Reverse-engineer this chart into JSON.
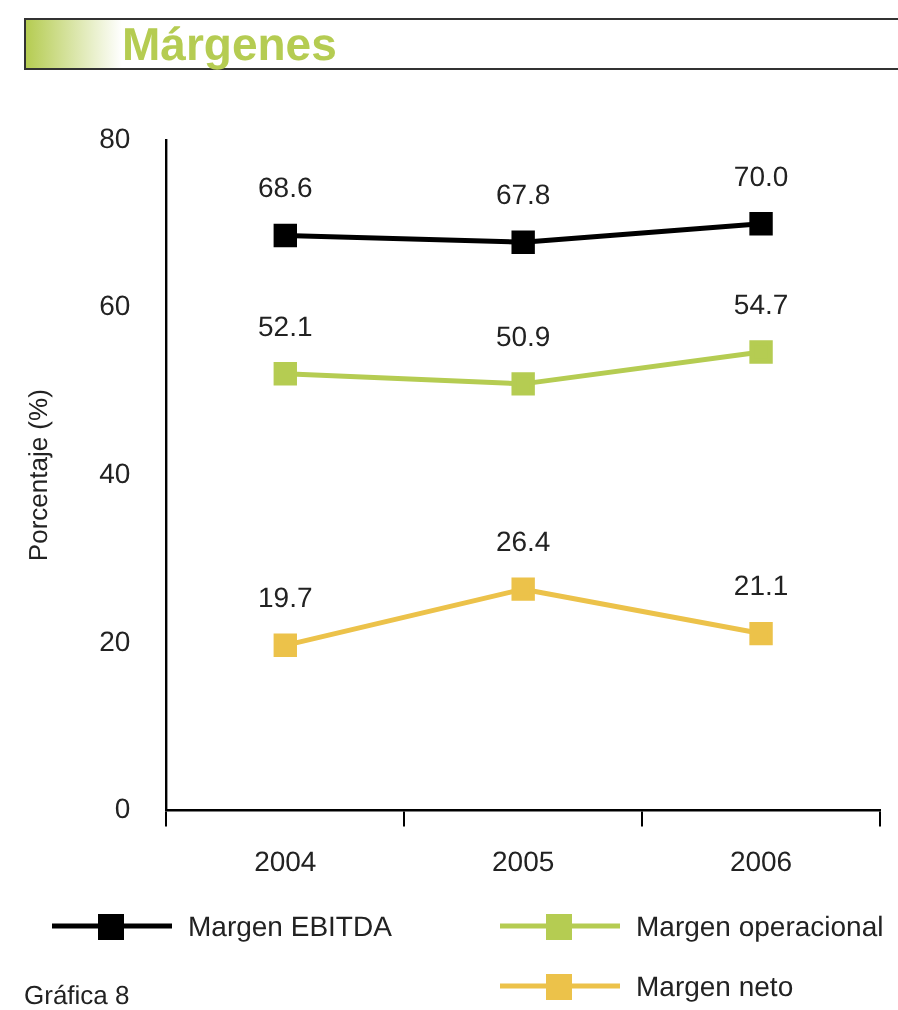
{
  "chart_data": {
    "type": "line",
    "title": "Márgenes",
    "ylabel": "Porcentaje (%)",
    "categories": [
      "2004",
      "2005",
      "2006"
    ],
    "series": [
      {
        "name": "Margen EBITDA",
        "color": "#000000",
        "values": [
          68.6,
          67.8,
          70.0
        ],
        "value_labels": [
          "68.6",
          "67.8",
          "70.0"
        ]
      },
      {
        "name": "Margen operacional",
        "color": "#b5cc52",
        "values": [
          52.1,
          50.9,
          54.7
        ],
        "value_labels": [
          "52.1",
          "50.9",
          "54.7"
        ]
      },
      {
        "name": "Margen neto",
        "color": "#ecc24a",
        "values": [
          19.7,
          26.4,
          21.1
        ],
        "value_labels": [
          "19.7",
          "26.4",
          "21.1"
        ]
      }
    ],
    "ylim": [
      0,
      80
    ],
    "yticks": [
      0,
      20,
      40,
      60,
      80
    ],
    "grid": false,
    "legend": "bottom",
    "marker": "square",
    "line_style": "solid",
    "annotations": [
      "Gráfica 8"
    ]
  }
}
